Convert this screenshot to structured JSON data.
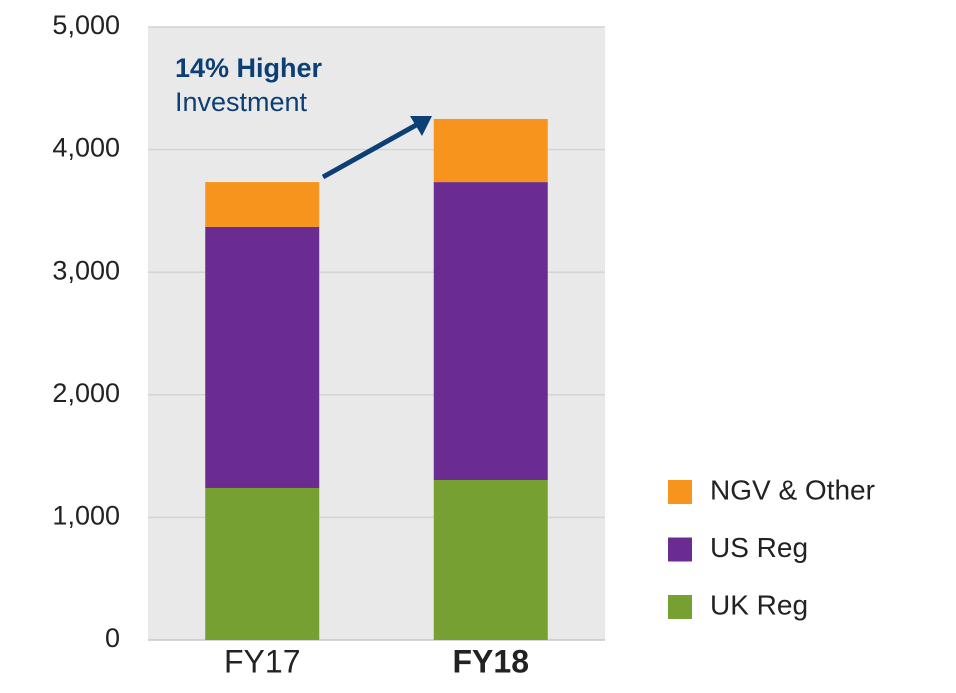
{
  "chart_data": {
    "type": "stacked_bar",
    "categories": [
      "FY17",
      "FY18"
    ],
    "series": [
      {
        "name": "UK Reg",
        "color": "#77a033",
        "values": [
          1240,
          1305
        ]
      },
      {
        "name": "US Reg",
        "color": "#6a2c91",
        "values": [
          2130,
          2430
        ]
      },
      {
        "name": "NGV & Other",
        "color": "#f7941d",
        "values": [
          365,
          515
        ]
      }
    ],
    "ylim": [
      0,
      5000
    ],
    "yticks": [
      0,
      {
        "value": 1000,
        "label": "1,000"
      },
      {
        "value": 2000,
        "label": "2,000"
      },
      {
        "value": 3000,
        "label": "3,000"
      },
      {
        "value": 4000,
        "label": "4,000"
      },
      {
        "value": 5000,
        "label": "5,000"
      }
    ],
    "grid": true,
    "legend": "right",
    "annotation": {
      "bold": "14% Higher",
      "text": "Investment"
    }
  }
}
